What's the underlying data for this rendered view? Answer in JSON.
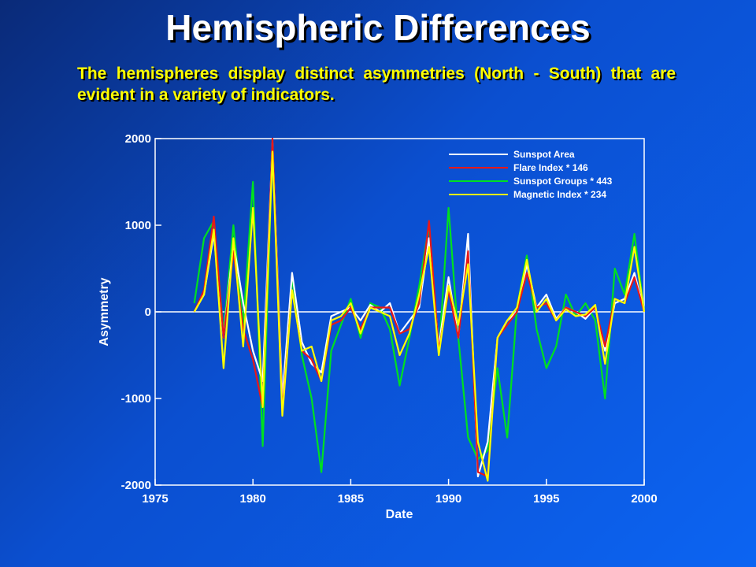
{
  "slide": {
    "title": "Hemispheric Differences",
    "subtitle": "The hemispheres display distinct asymmetries (North - South) that are evident in a variety of indicators."
  },
  "chart_data": {
    "type": "line",
    "xlabel": "Date",
    "ylabel": "Asymmetry",
    "xlim": [
      1975,
      2000
    ],
    "ylim": [
      -2000,
      2000
    ],
    "xticks": [
      1975,
      1980,
      1985,
      1990,
      1995,
      2000
    ],
    "yticks": [
      -2000,
      -1000,
      0,
      1000,
      2000
    ],
    "zero_line": true,
    "grid": false,
    "legend_position": "top-right",
    "x": [
      1977.0,
      1977.5,
      1978.0,
      1978.5,
      1979.0,
      1979.5,
      1980.0,
      1980.5,
      1981.0,
      1981.5,
      1982.0,
      1982.5,
      1983.0,
      1983.5,
      1984.0,
      1984.5,
      1985.0,
      1985.5,
      1986.0,
      1986.5,
      1987.0,
      1987.5,
      1988.0,
      1988.5,
      1989.0,
      1989.5,
      1990.0,
      1990.5,
      1991.0,
      1991.5,
      1992.0,
      1992.5,
      1993.0,
      1993.5,
      1994.0,
      1994.5,
      1995.0,
      1995.5,
      1996.0,
      1996.5,
      1997.0,
      1997.5,
      1998.0,
      1998.5,
      1999.0,
      1999.5,
      2000.0
    ],
    "series": [
      {
        "name": "Sunspot Area",
        "color": "#ffffff",
        "values": [
          0,
          200,
          900,
          -300,
          800,
          100,
          -450,
          -800,
          1950,
          -1000,
          450,
          -350,
          -600,
          -700,
          -50,
          0,
          50,
          -100,
          80,
          0,
          100,
          -250,
          -100,
          50,
          850,
          -400,
          400,
          -300,
          900,
          -1900,
          -1500,
          -300,
          -100,
          0,
          550,
          50,
          200,
          -80,
          50,
          0,
          -80,
          50,
          -450,
          100,
          150,
          450,
          0
        ]
      },
      {
        "name": "Flare Index * 146",
        "color": "#e81818",
        "values": [
          0,
          250,
          1100,
          -300,
          700,
          -200,
          -550,
          -1100,
          2000,
          -1150,
          250,
          -450,
          -550,
          -800,
          -150,
          -100,
          50,
          -200,
          50,
          50,
          50,
          -250,
          -200,
          100,
          1050,
          -450,
          250,
          -300,
          700,
          -1850,
          -1900,
          -300,
          -150,
          0,
          450,
          50,
          100,
          -100,
          50,
          0,
          -50,
          50,
          -400,
          150,
          100,
          400,
          0
        ]
      },
      {
        "name": "Sunspot Groups * 443",
        "color": "#00e020",
        "values": [
          100,
          850,
          1050,
          -250,
          1000,
          -150,
          1500,
          -1550,
          1900,
          -1100,
          400,
          -500,
          -1000,
          -1850,
          -450,
          -150,
          150,
          -300,
          100,
          50,
          -200,
          -850,
          -300,
          300,
          1000,
          -500,
          1200,
          -300,
          -1450,
          -1700,
          -1600,
          -650,
          -1450,
          50,
          650,
          -200,
          -650,
          -400,
          200,
          -50,
          100,
          -100,
          -1000,
          500,
          200,
          900,
          0
        ]
      },
      {
        "name": "Magnetic Index * 234",
        "color": "#ffff00",
        "values": [
          0,
          200,
          950,
          -650,
          850,
          -400,
          1200,
          -1100,
          1850,
          -1200,
          250,
          -450,
          -400,
          -800,
          -100,
          -50,
          100,
          -250,
          50,
          0,
          -50,
          -500,
          -250,
          200,
          750,
          -500,
          300,
          -150,
          550,
          -1500,
          -1950,
          -300,
          -100,
          50,
          600,
          0,
          150,
          -100,
          30,
          -50,
          -30,
          80,
          -600,
          150,
          100,
          750,
          0
        ]
      }
    ]
  }
}
